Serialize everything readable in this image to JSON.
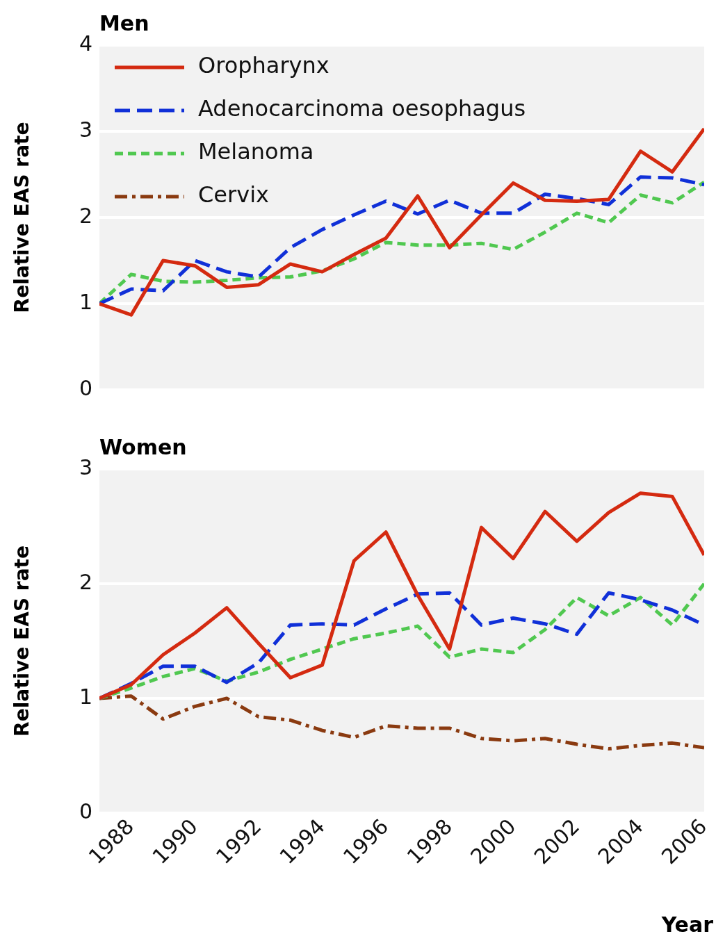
{
  "chart_data": [
    {
      "type": "line",
      "title": "Men",
      "ylabel": "Relative EAS rate",
      "x": [
        1987,
        1988,
        1989,
        1990,
        1991,
        1992,
        1993,
        1994,
        1995,
        1996,
        1997,
        1998,
        1999,
        2000,
        2001,
        2002,
        2003,
        2004,
        2005,
        2006
      ],
      "xlim": [
        1987,
        2006
      ],
      "xticks": [
        1988,
        1990,
        1992,
        1994,
        1996,
        1998,
        2000,
        2002,
        2004,
        2006
      ],
      "ylim": [
        0,
        4
      ],
      "yticks": [
        0,
        1,
        2,
        3,
        4
      ],
      "grid": "y",
      "legend": "top left",
      "tick_labels": "y",
      "marker": "none",
      "series": [
        {
          "name": "Oropharynx",
          "color": "#d42a10",
          "line_style": "solid",
          "values": [
            1.0,
            0.87,
            1.5,
            1.44,
            1.19,
            1.22,
            1.46,
            1.37,
            1.57,
            1.76,
            2.25,
            1.65,
            2.03,
            2.4,
            2.2,
            2.19,
            2.21,
            2.77,
            2.53,
            3.03
          ]
        },
        {
          "name": "Adenocarcinoma oesophagus",
          "color": "#1030d8",
          "line_style": "dashed",
          "values": [
            1.0,
            1.17,
            1.15,
            1.5,
            1.37,
            1.31,
            1.65,
            1.86,
            2.03,
            2.19,
            2.04,
            2.2,
            2.05,
            2.05,
            2.27,
            2.22,
            2.15,
            2.47,
            2.46,
            2.38
          ]
        },
        {
          "name": "Melanoma",
          "color": "#50c850",
          "line_style": "dotted",
          "values": [
            1.0,
            1.34,
            1.26,
            1.25,
            1.27,
            1.3,
            1.31,
            1.38,
            1.52,
            1.71,
            1.68,
            1.68,
            1.7,
            1.63,
            1.83,
            2.05,
            1.94,
            2.26,
            2.17,
            2.41
          ]
        },
        {
          "name": "Cervix",
          "color": "#8a3a10",
          "line_style": "dashdot",
          "values": [
            null,
            null,
            null,
            null,
            null,
            null,
            null,
            null,
            null,
            null,
            null,
            null,
            null,
            null,
            null,
            null,
            null,
            null,
            null,
            null
          ]
        }
      ]
    },
    {
      "type": "line",
      "title": "Women",
      "ylabel": "Relative EAS rate",
      "xlabel": "Year",
      "x": [
        1987,
        1988,
        1989,
        1990,
        1991,
        1992,
        1993,
        1994,
        1995,
        1996,
        1997,
        1998,
        1999,
        2000,
        2001,
        2002,
        2003,
        2004,
        2005,
        2006
      ],
      "xlim": [
        1987,
        2006
      ],
      "xticks": [
        1988,
        1990,
        1992,
        1994,
        1996,
        1998,
        2000,
        2002,
        2004,
        2006
      ],
      "ylim": [
        0,
        3
      ],
      "yticks": [
        0,
        1,
        2,
        3
      ],
      "grid": "y",
      "marker": "none",
      "series": [
        {
          "color": "#d42a10",
          "line_style": "solid",
          "values": [
            1.0,
            1.12,
            1.38,
            1.57,
            1.79,
            1.48,
            1.18,
            1.29,
            2.2,
            2.45,
            1.9,
            1.43,
            2.49,
            2.22,
            2.63,
            2.37,
            2.62,
            2.79,
            2.76,
            2.25
          ]
        },
        {
          "color": "#1030d8",
          "line_style": "dashed",
          "values": [
            1.0,
            1.13,
            1.28,
            1.28,
            1.14,
            1.31,
            1.64,
            1.65,
            1.64,
            1.78,
            1.91,
            1.92,
            1.64,
            1.7,
            1.65,
            1.56,
            1.92,
            1.86,
            1.77,
            1.64
          ]
        },
        {
          "color": "#50c850",
          "line_style": "dotted",
          "values": [
            1.0,
            1.09,
            1.19,
            1.26,
            1.15,
            1.23,
            1.34,
            1.43,
            1.52,
            1.57,
            1.63,
            1.36,
            1.43,
            1.4,
            1.6,
            1.88,
            1.72,
            1.88,
            1.64,
            2.0
          ]
        },
        {
          "color": "#8a3a10",
          "line_style": "dashdot",
          "values": [
            1.0,
            1.02,
            0.82,
            0.93,
            1.0,
            0.84,
            0.81,
            0.72,
            0.66,
            0.76,
            0.74,
            0.74,
            0.65,
            0.63,
            0.65,
            0.6,
            0.56,
            0.59,
            0.61,
            0.57
          ]
        }
      ]
    }
  ]
}
